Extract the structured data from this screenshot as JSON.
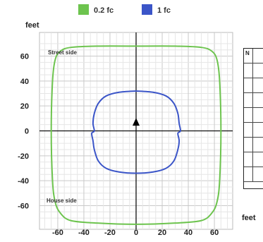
{
  "chart_data": {
    "type": "line",
    "title": "",
    "xlabel": "",
    "ylabel": "feet",
    "xlim": [
      -74,
      74
    ],
    "ylim": [
      -79,
      79
    ],
    "x_ticks": [
      -60,
      -40,
      -20,
      0,
      20,
      40,
      60
    ],
    "y_ticks": [
      60,
      40,
      20,
      0,
      -20,
      -40,
      -60
    ],
    "grid": true,
    "legend_position": "top-center",
    "annotations": [
      "Street side",
      "House side"
    ],
    "colors": {
      "0.2 fc": "#6dc44e",
      "1 fc": "#3b55c8"
    },
    "series": [
      {
        "name": "0.2 fc",
        "x": [
          0,
          30,
          50,
          58,
          62,
          64,
          65,
          64,
          62,
          58,
          50,
          30,
          0,
          -30,
          -50,
          -58,
          -62,
          -64,
          -65,
          -64,
          -62,
          -58,
          -50,
          -30,
          0
        ],
        "y": [
          68,
          68,
          67,
          64,
          57,
          40,
          0,
          -40,
          -57,
          -66,
          -72,
          -74,
          -75,
          -74,
          -72,
          -66,
          -57,
          -40,
          0,
          40,
          57,
          64,
          67,
          68,
          68
        ]
      },
      {
        "name": "1 fc",
        "x": [
          0,
          13,
          23,
          29,
          32,
          33,
          34,
          32,
          33,
          32,
          29,
          23,
          13,
          0,
          -13,
          -23,
          -29,
          -32,
          -33,
          -34,
          -32,
          -33,
          -32,
          -29,
          -23,
          -13,
          0
        ],
        "y": [
          32,
          31,
          28,
          22,
          14,
          6,
          0,
          -2,
          -8,
          -15,
          -24,
          -30,
          -33,
          -34,
          -33,
          -30,
          -24,
          -15,
          -8,
          -2,
          0,
          6,
          14,
          22,
          28,
          31,
          32
        ]
      }
    ],
    "marker": {
      "label": "",
      "x": 0,
      "y": 7
    }
  },
  "side_labels": {
    "feet_right": "feet",
    "table_header": "N"
  }
}
